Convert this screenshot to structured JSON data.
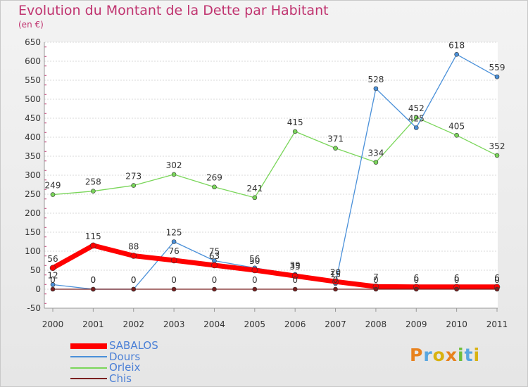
{
  "header": {
    "title": "Evolution du Montant de la Dette par Habitant",
    "subtitle": "(en €)"
  },
  "logo": {
    "text": "Proxiti",
    "colors": [
      "#e8821e",
      "#58a6e0",
      "#d9b20f",
      "#e8821e",
      "#6fbf3a",
      "#58a6e0",
      "#d9b20f"
    ]
  },
  "chart_data": {
    "type": "line",
    "x": [
      "2000",
      "2001",
      "2002",
      "2003",
      "2004",
      "2005",
      "2006",
      "2007",
      "2008",
      "2009",
      "2010",
      "2011"
    ],
    "ylim": [
      -50,
      650
    ],
    "yticks": [
      -50,
      0,
      50,
      100,
      150,
      200,
      250,
      300,
      350,
      400,
      450,
      500,
      550,
      600,
      650
    ],
    "title": "Evolution du Montant de la Dette par Habitant",
    "ylabel": "(en €)",
    "grid": "horizontal",
    "legend": "bottom-left",
    "series": [
      {
        "name": "SABALOS",
        "color": "#ff0000",
        "values": [
          56,
          115,
          88,
          76,
          63,
          50,
          35,
          20,
          7,
          6,
          6,
          6
        ]
      },
      {
        "name": "Dours",
        "color": "#4a90d9",
        "values": [
          12,
          0,
          0,
          125,
          75,
          56,
          39,
          15,
          528,
          425,
          618,
          559
        ]
      },
      {
        "name": "Orleix",
        "color": "#7ad65a",
        "values": [
          249,
          258,
          273,
          302,
          269,
          241,
          415,
          371,
          334,
          452,
          405,
          352
        ]
      },
      {
        "name": "Chis",
        "color": "#7a2020",
        "values": [
          0,
          0,
          0,
          0,
          0,
          0,
          0,
          0,
          0,
          0,
          0,
          0
        ]
      }
    ]
  }
}
